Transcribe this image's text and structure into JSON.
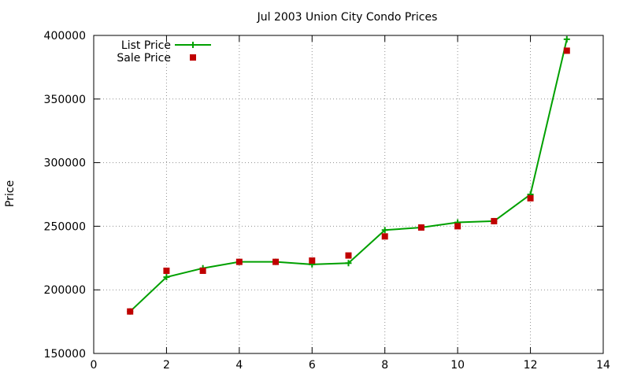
{
  "chart_data": {
    "type": "line",
    "title": "Jul 2003 Union City Condo Prices",
    "xlabel": "",
    "ylabel": "Price",
    "xlim": [
      0,
      14
    ],
    "ylim": [
      150000,
      400000
    ],
    "xticks": [
      0,
      2,
      4,
      6,
      8,
      10,
      12,
      14
    ],
    "yticks": [
      150000,
      200000,
      250000,
      300000,
      350000,
      400000
    ],
    "grid": true,
    "legend_position": "top-left",
    "series": [
      {
        "name": "List Price",
        "style": "line+plus-markers",
        "color": "#00a000",
        "points": [
          [
            1,
            183000
          ],
          [
            2,
            210000
          ],
          [
            3,
            217000
          ],
          [
            4,
            222000
          ],
          [
            5,
            222000
          ],
          [
            6,
            220000
          ],
          [
            7,
            221000
          ],
          [
            8,
            247000
          ],
          [
            9,
            249000
          ],
          [
            10,
            253000
          ],
          [
            11,
            254000
          ],
          [
            12,
            275000
          ],
          [
            13,
            397000
          ]
        ]
      },
      {
        "name": "Sale Price",
        "style": "square-markers",
        "color": "#c00000",
        "points": [
          [
            1,
            183000
          ],
          [
            2,
            215000
          ],
          [
            3,
            215000
          ],
          [
            4,
            222000
          ],
          [
            5,
            222000
          ],
          [
            6,
            223000
          ],
          [
            7,
            227000
          ],
          [
            8,
            242000
          ],
          [
            9,
            249000
          ],
          [
            10,
            250000
          ],
          [
            11,
            254000
          ],
          [
            12,
            272000
          ],
          [
            13,
            388000
          ]
        ]
      }
    ]
  }
}
